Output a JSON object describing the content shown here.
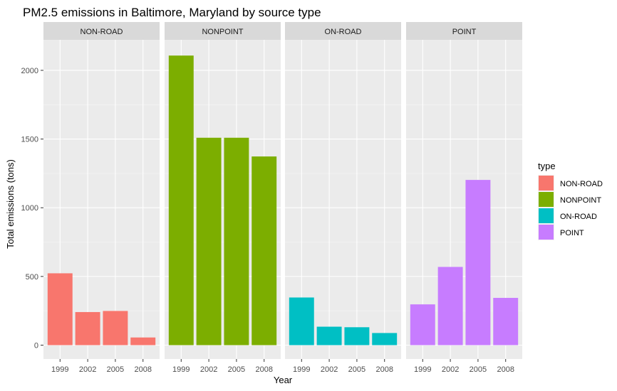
{
  "chart_data": {
    "type": "bar",
    "title": "PM2.5 emissions in Baltimore, Maryland by source type",
    "xlabel": "Year",
    "ylabel": "Total emissions (tons)",
    "categories": [
      "1999",
      "2002",
      "2005",
      "2008"
    ],
    "ylim": [
      0,
      2230
    ],
    "yticks": [
      0,
      500,
      1000,
      1500,
      2000
    ],
    "grid": true,
    "legend": {
      "title": "type",
      "placement": "right"
    },
    "facets": [
      {
        "name": "NON-ROAD",
        "color": "#F8766D",
        "values": [
          522.9,
          240.8,
          248.9,
          55.8
        ]
      },
      {
        "name": "NONPOINT",
        "color": "#7CAE00",
        "values": [
          2107.6,
          1509.5,
          1509.5,
          1373.2
        ]
      },
      {
        "name": "ON-ROAD",
        "color": "#00BFC4",
        "values": [
          346.8,
          134.3,
          130.4,
          88.3
        ]
      },
      {
        "name": "POINT",
        "color": "#C77CFF",
        "values": [
          296.8,
          569.3,
          1202.5,
          344.0
        ]
      }
    ]
  }
}
